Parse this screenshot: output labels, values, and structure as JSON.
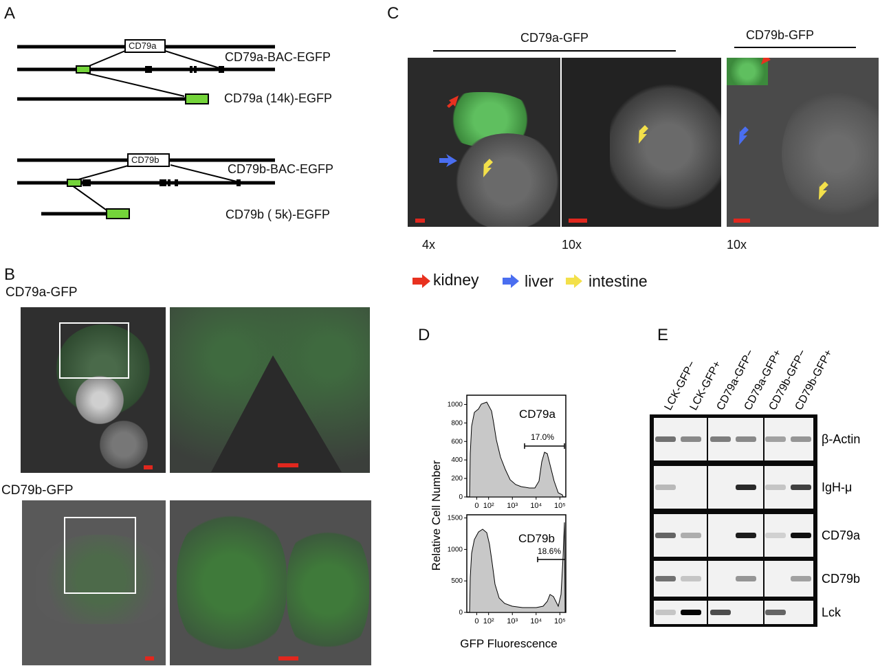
{
  "panel_A": {
    "label": "A",
    "cd79a_box": "CD79a",
    "cd79b_box": "CD79b",
    "constructs": [
      "CD79a-BAC-EGFP",
      "CD79a (14k)-EGFP",
      "CD79b-BAC-EGFP",
      "CD79b ( 5k)-EGFP"
    ]
  },
  "panel_B": {
    "label": "B",
    "top_title": "CD79a-GFP",
    "bottom_title": "CD79b-GFP"
  },
  "panel_C": {
    "label": "C",
    "group_a_title": "CD79a-GFP",
    "group_b_title": "CD79b-GFP",
    "magnifications": [
      "4x",
      "10x",
      "10x"
    ],
    "legend": [
      {
        "label": "kidney",
        "color": "#e8311f"
      },
      {
        "label": "liver",
        "color": "#4a6ef0"
      },
      {
        "label": "intestine",
        "color": "#f3e04a"
      }
    ]
  },
  "panel_D": {
    "label": "D",
    "ylabel": "Relative Cell Number",
    "xlabel": "GFP Fluorescence"
  },
  "panel_E": {
    "label": "E",
    "lanes": [
      "LCK-GFP−",
      "LCK-GFP+",
      "CD79a-GFP−",
      "CD79a-GFP+",
      "CD79b-GFP−",
      "CD79b-GFP+"
    ],
    "rows": [
      "β-Actin",
      "IgH-μ",
      "CD79a",
      "CD79b",
      "Lck"
    ]
  },
  "chart_data": [
    {
      "type": "area",
      "series_label": "CD79a",
      "gate_label": "17.0%",
      "x_ticks": [
        "0",
        "10²",
        "10³",
        "10⁴",
        "10⁵"
      ],
      "y_ticks": [
        0,
        200,
        400,
        600,
        800,
        1000
      ],
      "ylim": [
        0,
        1100
      ],
      "peaks": [
        {
          "x": "~10²",
          "y": 1050
        },
        {
          "x": "~2×10⁴",
          "y": 510
        }
      ]
    },
    {
      "type": "area",
      "series_label": "CD79b",
      "gate_label": "18.6%",
      "x_ticks": [
        "0",
        "10²",
        "10³",
        "10⁴",
        "10⁵"
      ],
      "y_ticks": [
        0,
        500,
        1000,
        1500
      ],
      "ylim": [
        0,
        1550
      ],
      "peaks": [
        {
          "x": "~10²",
          "y": 1370
        },
        {
          "x": "~2×10⁴",
          "y": 280
        }
      ]
    }
  ]
}
